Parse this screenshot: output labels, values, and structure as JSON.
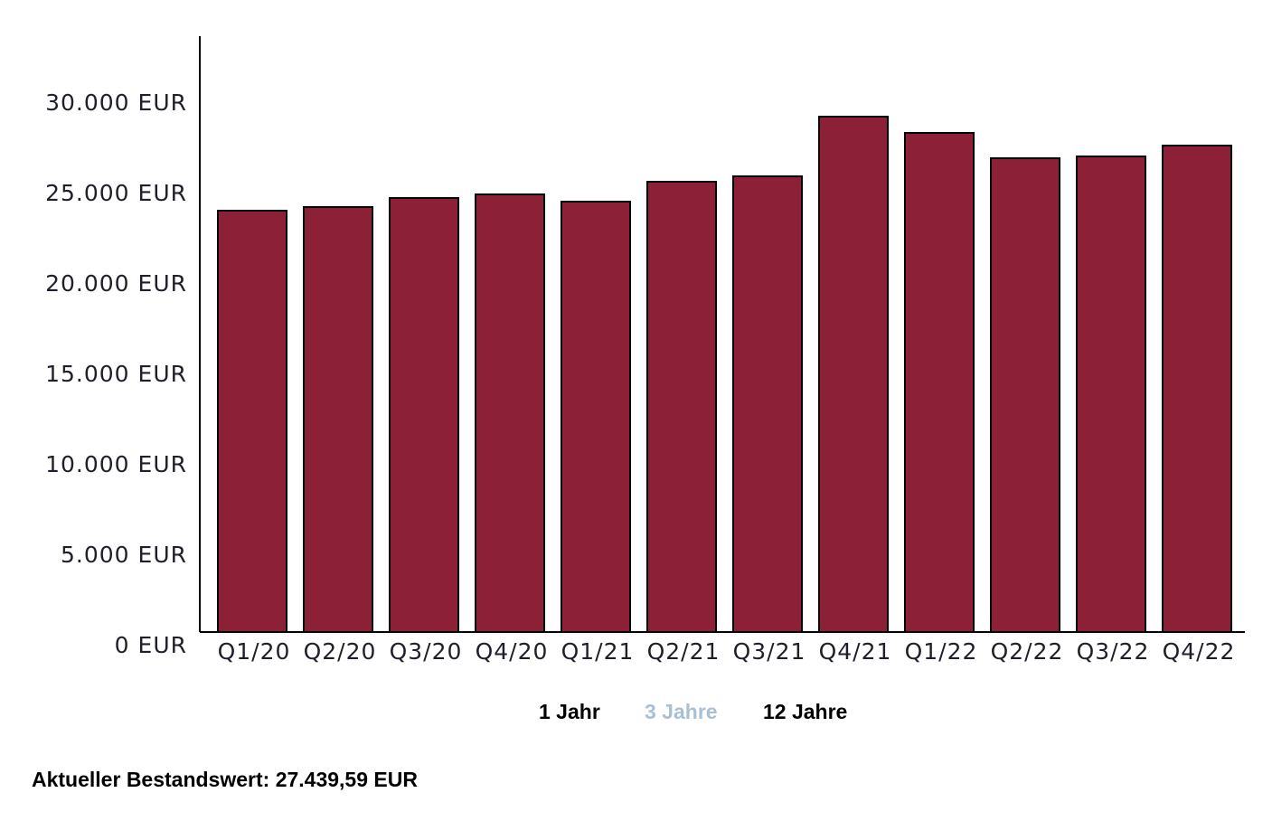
{
  "chart_data": {
    "type": "bar",
    "categories": [
      "Q1/20",
      "Q2/20",
      "Q3/20",
      "Q4/20",
      "Q1/21",
      "Q2/21",
      "Q3/21",
      "Q4/21",
      "Q1/22",
      "Q2/22",
      "Q3/22",
      "Q4/22"
    ],
    "values": [
      23300,
      23500,
      24000,
      24200,
      23800,
      24900,
      25200,
      28500,
      27600,
      26200,
      26300,
      26900
    ],
    "title": "",
    "xlabel": "",
    "ylabel": "",
    "ylim": [
      0,
      33000
    ],
    "yticks": [
      0,
      5000,
      10000,
      15000,
      20000,
      25000,
      30000
    ],
    "ytick_labels": [
      "0 EUR",
      "5.000 EUR",
      "10.000 EUR",
      "15.000 EUR",
      "20.000 EUR",
      "25.000 EUR",
      "30.000 EUR"
    ],
    "grid": false,
    "bar_color": "#8b2036"
  },
  "range_selector": {
    "options": [
      {
        "label": "1 Jahr",
        "active": true
      },
      {
        "label": "3 Jahre",
        "active": false
      },
      {
        "label": "12 Jahre",
        "active": true
      }
    ]
  },
  "summary": {
    "current_value_label": "Aktueller Bestandswert: 27.439,59 EUR"
  }
}
